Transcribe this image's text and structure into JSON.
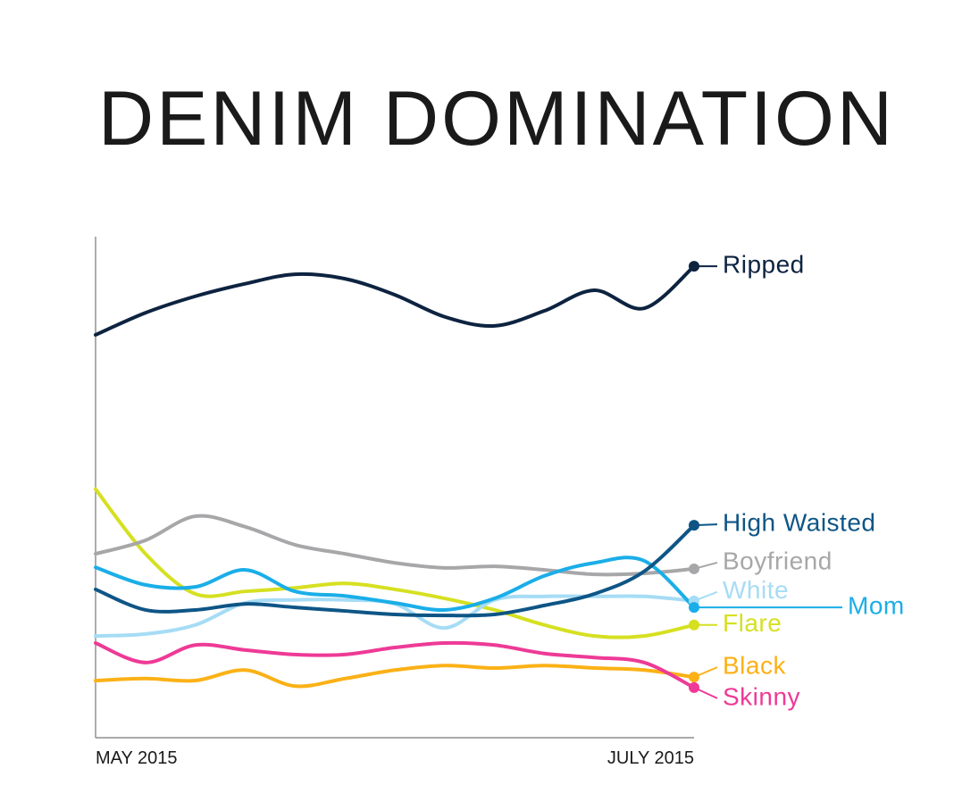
{
  "chart_data": {
    "type": "line",
    "title": "DENIM DOMINATION",
    "categories": [
      "MAY 2015",
      null,
      null,
      null,
      null,
      null,
      null,
      null,
      null,
      null,
      null,
      null,
      "JULY 2015"
    ],
    "ylim": [
      0,
      100
    ],
    "series": [
      {
        "name": "Black",
        "color": "#fbb116",
        "values": [
          11.4,
          11.8,
          11.4,
          13.5,
          10.3,
          11.8,
          13.5,
          14.4,
          13.9,
          14.4,
          13.9,
          13.5,
          12.1
        ]
      },
      {
        "name": "Skinny",
        "color": "#ee3a96",
        "values": [
          18.9,
          15.0,
          18.5,
          17.5,
          16.6,
          16.6,
          18.0,
          18.9,
          18.5,
          16.8,
          16.0,
          15.0,
          10.0
        ]
      },
      {
        "name": "Flare",
        "color": "#d6e021",
        "values": [
          49.6,
          36.7,
          28.7,
          29.2,
          29.9,
          30.8,
          29.6,
          27.8,
          25.5,
          22.5,
          20.3,
          20.3,
          22.5
        ]
      },
      {
        "name": "White",
        "color": "#a6dcf5",
        "values": [
          20.3,
          20.7,
          22.5,
          26.9,
          27.5,
          27.5,
          26.7,
          21.9,
          27.5,
          28.2,
          28.2,
          28.2,
          27.3
        ]
      },
      {
        "name": "Boyfriend",
        "color": "#a7a7a9",
        "values": [
          36.7,
          39.4,
          44.2,
          42.1,
          38.5,
          36.7,
          34.9,
          33.9,
          34.2,
          33.5,
          32.6,
          32.8,
          33.7
        ]
      },
      {
        "name": "Mom",
        "color": "#1aaee8",
        "values": [
          34.0,
          30.5,
          30.1,
          33.5,
          29.2,
          28.3,
          26.9,
          25.5,
          27.8,
          32.3,
          34.9,
          35.3,
          26.0
        ]
      },
      {
        "name": "High Waisted",
        "color": "#0e5586",
        "values": [
          29.6,
          25.5,
          25.5,
          26.7,
          26.0,
          25.3,
          24.6,
          24.4,
          24.6,
          26.4,
          28.7,
          33.2,
          42.4
        ]
      },
      {
        "name": "Ripped",
        "color": "#0d2340",
        "values": [
          80.4,
          84.8,
          88.1,
          90.6,
          92.5,
          91.6,
          88.4,
          84.0,
          82.2,
          85.2,
          89.3,
          85.7,
          94.1
        ]
      }
    ]
  }
}
